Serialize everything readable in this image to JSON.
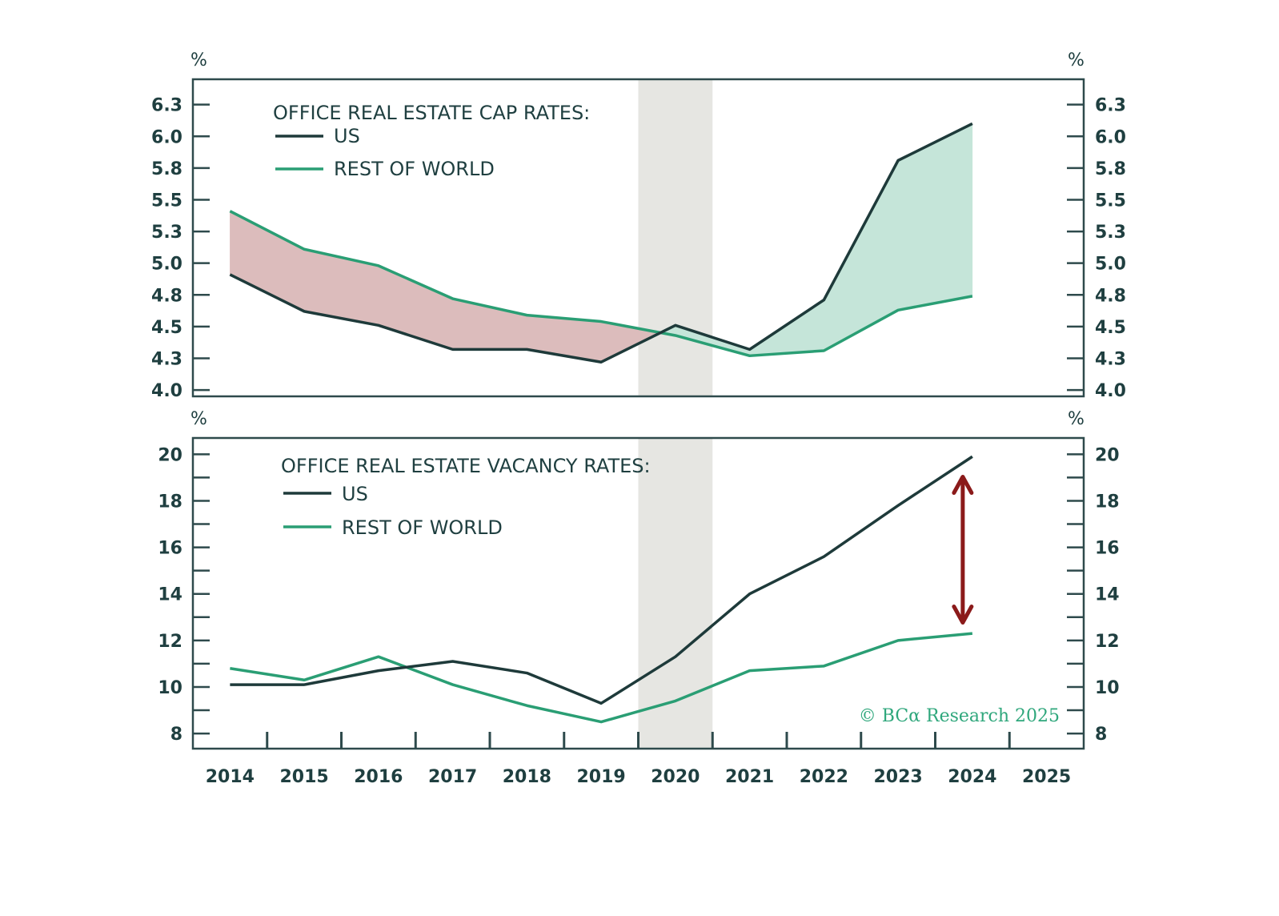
{
  "colors": {
    "us": "#1e3a3a",
    "row": "#2a9e74",
    "frame": "#2e4a4c",
    "recession": "#e6e6e2",
    "fill_neg": "#dcbcbc",
    "fill_pos": "#c5e5d9",
    "arrow": "#8b1a1a",
    "text": "#1f3f40",
    "copyright": "#2fa77c"
  },
  "x_years": [
    "2014",
    "2015",
    "2016",
    "2017",
    "2018",
    "2019",
    "2020",
    "2021",
    "2022",
    "2023",
    "2024",
    "2025"
  ],
  "recession_year": "2020",
  "copyright": "© BCα Research 2025",
  "chart_data": [
    {
      "type": "line",
      "title": "OFFICE REAL ESTATE CAP RATES:",
      "xlabel": "",
      "ylabel": "%",
      "ylabel_right": "%",
      "ylim": [
        3.95,
        6.45
      ],
      "yticks": [
        4.0,
        4.25,
        4.5,
        4.75,
        5.0,
        5.25,
        5.5,
        5.75,
        6.0,
        6.25
      ],
      "ytick_labels": [
        "4.0",
        "4.3",
        "4.5",
        "4.8",
        "5.0",
        "5.3",
        "5.5",
        "5.8",
        "6.0",
        "6.3"
      ],
      "x": [
        "2014",
        "2015",
        "2016",
        "2017",
        "2018",
        "2019",
        "2020",
        "2021",
        "2022",
        "2023",
        "2024"
      ],
      "series": [
        {
          "name": "US",
          "values": [
            4.91,
            4.62,
            4.51,
            4.32,
            4.32,
            4.22,
            4.51,
            4.32,
            4.71,
            5.81,
            6.1
          ]
        },
        {
          "name": "REST OF WORLD",
          "values": [
            5.41,
            5.11,
            4.98,
            4.72,
            4.59,
            4.54,
            4.43,
            4.27,
            4.31,
            4.63,
            4.74
          ]
        }
      ],
      "fill_between": true,
      "legend": "top-left",
      "grid": false
    },
    {
      "type": "line",
      "title": "OFFICE REAL ESTATE VACANCY RATES:",
      "xlabel": "",
      "ylabel": "%",
      "ylabel_right": "%",
      "ylim": [
        7.35,
        20.7
      ],
      "yticks": [
        8,
        10,
        12,
        14,
        16,
        18,
        20
      ],
      "ytick_labels": [
        "8",
        "10",
        "12",
        "14",
        "16",
        "18",
        "20"
      ],
      "minor_ticks": [
        9,
        11,
        13,
        15,
        17,
        19
      ],
      "x": [
        "2014",
        "2015",
        "2016",
        "2017",
        "2018",
        "2019",
        "2020",
        "2021",
        "2022",
        "2023",
        "2024"
      ],
      "series": [
        {
          "name": "US",
          "values": [
            10.1,
            10.1,
            10.7,
            11.1,
            10.6,
            9.3,
            11.3,
            14.0,
            15.6,
            17.8,
            19.9
          ]
        },
        {
          "name": "REST OF WORLD",
          "values": [
            10.8,
            10.3,
            11.3,
            10.1,
            9.2,
            8.5,
            9.4,
            10.7,
            10.9,
            12.0,
            12.3
          ]
        }
      ],
      "annotation": {
        "type": "double-arrow",
        "x": "2024",
        "from": 12.7,
        "to": 19.1
      },
      "legend": "top-left",
      "grid": false
    }
  ]
}
